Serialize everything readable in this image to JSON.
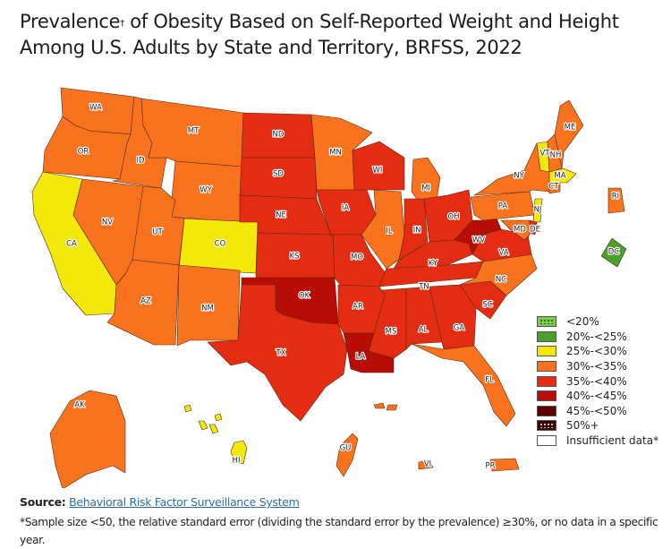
{
  "title": {
    "pre": "Prevalence",
    "dagger": "†",
    "post": " of Obesity Based on Self-Reported Weight and Height Among U.S. Adults by State and Territory, BRFSS, 2022"
  },
  "chart_data": {
    "type": "choropleth",
    "title": "Prevalence† of Obesity Based on Self-Reported Weight and Height Among U.S. Adults by State and Territory, BRFSS, 2022",
    "legend_position": "bottom-right",
    "categories": [
      {
        "id": "lt20",
        "label": "<20%",
        "color": "#7ec850",
        "pattern": "dots"
      },
      {
        "id": "20-25",
        "label": "20%-<25%",
        "color": "#4aa02c"
      },
      {
        "id": "25-30",
        "label": "25%-<30%",
        "color": "#f2e80a"
      },
      {
        "id": "30-35",
        "label": "30%-<35%",
        "color": "#f9731f"
      },
      {
        "id": "35-40",
        "label": "35%-<40%",
        "color": "#e42c12"
      },
      {
        "id": "40-45",
        "label": "40%-<45%",
        "color": "#b80c06"
      },
      {
        "id": "45-50",
        "label": "45%-<50%",
        "color": "#5c0000"
      },
      {
        "id": "50p",
        "label": "50%+",
        "color": "#3b0000",
        "pattern": "dots-light"
      },
      {
        "id": "insufficient",
        "label": "Insufficient data*",
        "color": "#ffffff"
      }
    ],
    "regions": [
      {
        "abbr": "WA",
        "category": "30-35"
      },
      {
        "abbr": "OR",
        "category": "30-35"
      },
      {
        "abbr": "CA",
        "category": "25-30"
      },
      {
        "abbr": "ID",
        "category": "30-35"
      },
      {
        "abbr": "NV",
        "category": "30-35"
      },
      {
        "abbr": "MT",
        "category": "30-35"
      },
      {
        "abbr": "WY",
        "category": "30-35"
      },
      {
        "abbr": "UT",
        "category": "30-35"
      },
      {
        "abbr": "AZ",
        "category": "30-35"
      },
      {
        "abbr": "CO",
        "category": "25-30"
      },
      {
        "abbr": "NM",
        "category": "30-35"
      },
      {
        "abbr": "ND",
        "category": "35-40"
      },
      {
        "abbr": "SD",
        "category": "35-40"
      },
      {
        "abbr": "NE",
        "category": "35-40"
      },
      {
        "abbr": "KS",
        "category": "35-40"
      },
      {
        "abbr": "OK",
        "category": "40-45"
      },
      {
        "abbr": "TX",
        "category": "35-40"
      },
      {
        "abbr": "MN",
        "category": "30-35"
      },
      {
        "abbr": "IA",
        "category": "35-40"
      },
      {
        "abbr": "MO",
        "category": "35-40"
      },
      {
        "abbr": "AR",
        "category": "35-40"
      },
      {
        "abbr": "LA",
        "category": "40-45"
      },
      {
        "abbr": "WI",
        "category": "35-40"
      },
      {
        "abbr": "IL",
        "category": "30-35"
      },
      {
        "abbr": "MI",
        "category": "30-35"
      },
      {
        "abbr": "IN",
        "category": "35-40"
      },
      {
        "abbr": "OH",
        "category": "35-40"
      },
      {
        "abbr": "KY",
        "category": "35-40"
      },
      {
        "abbr": "TN",
        "category": "35-40"
      },
      {
        "abbr": "MS",
        "category": "35-40"
      },
      {
        "abbr": "AL",
        "category": "35-40"
      },
      {
        "abbr": "GA",
        "category": "35-40"
      },
      {
        "abbr": "FL",
        "category": "30-35"
      },
      {
        "abbr": "SC",
        "category": "35-40"
      },
      {
        "abbr": "NC",
        "category": "30-35"
      },
      {
        "abbr": "VA",
        "category": "35-40"
      },
      {
        "abbr": "WV",
        "category": "40-45"
      },
      {
        "abbr": "PA",
        "category": "30-35"
      },
      {
        "abbr": "NY",
        "category": "30-35"
      },
      {
        "abbr": "VT",
        "category": "25-30"
      },
      {
        "abbr": "NH",
        "category": "30-35"
      },
      {
        "abbr": "ME",
        "category": "30-35"
      },
      {
        "abbr": "MA",
        "category": "25-30"
      },
      {
        "abbr": "CT",
        "category": "30-35"
      },
      {
        "abbr": "RI",
        "category": "30-35"
      },
      {
        "abbr": "NJ",
        "category": "25-30"
      },
      {
        "abbr": "DE",
        "category": "35-40"
      },
      {
        "abbr": "MD",
        "category": "30-35"
      },
      {
        "abbr": "DC",
        "category": "20-25"
      },
      {
        "abbr": "AK",
        "category": "30-35"
      },
      {
        "abbr": "HI",
        "category": "25-30"
      },
      {
        "abbr": "GU",
        "category": "30-35"
      },
      {
        "abbr": "PR",
        "category": "30-35"
      },
      {
        "abbr": "VI",
        "category": "30-35"
      }
    ]
  },
  "source": {
    "label": "Source:",
    "link_text": "Behavioral Risk Factor Surveillance System"
  },
  "footnote": "*Sample size <50, the relative standard error (dividing the standard error by the prevalence) ≥30%, or no data in a specific year."
}
